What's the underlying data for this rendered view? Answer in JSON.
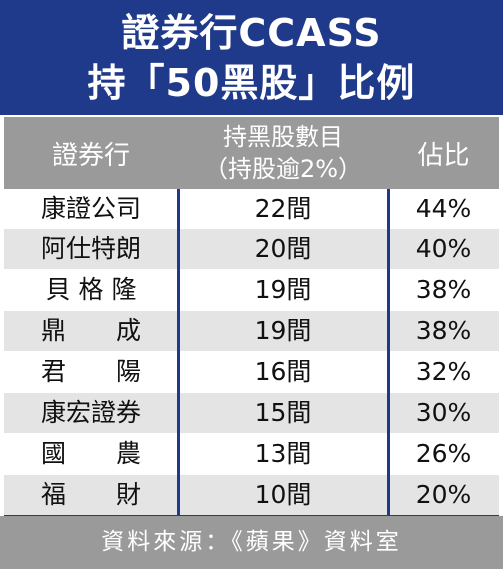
{
  "title": {
    "line1": "證券行CCASS",
    "line2": "持「50黑股」比例"
  },
  "headers": {
    "broker": "證券行",
    "count_line1": "持黑股數目",
    "count_line2": "（持股逾2%）",
    "ratio": "佔比"
  },
  "rows": [
    {
      "name": "康證公司",
      "count": "22間",
      "ratio": "44%"
    },
    {
      "name": "阿仕特朗",
      "count": "20間",
      "ratio": "40%"
    },
    {
      "name": "貝 格 隆",
      "count": "19間",
      "ratio": "38%"
    },
    {
      "name": "鼎　　成",
      "count": "19間",
      "ratio": "38%"
    },
    {
      "name": "君　　陽",
      "count": "16間",
      "ratio": "32%"
    },
    {
      "name": "康宏證券",
      "count": "15間",
      "ratio": "30%"
    },
    {
      "name": "國　　農",
      "count": "13間",
      "ratio": "26%"
    },
    {
      "name": "福　　財",
      "count": "10間",
      "ratio": "20%"
    }
  ],
  "footer": "資料來源：《蘋果》資料室",
  "colors": {
    "title_bg": "#1f3a8a",
    "header_bg": "#9a9a9a",
    "row_alt": "#e4e4e4",
    "divider": "#1f3a8a"
  }
}
